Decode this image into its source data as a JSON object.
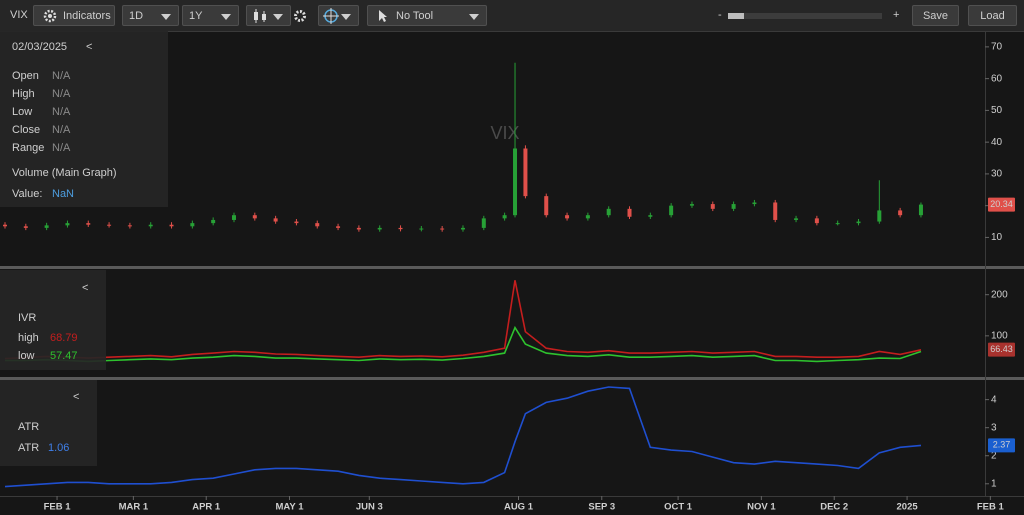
{
  "toolbar": {
    "symbol": "VIX",
    "indicators": "Indicators",
    "interval": "1D",
    "range": "1Y",
    "tool": "No Tool",
    "zoom_out": "-",
    "zoom_in": "+",
    "save": "Save",
    "load": "Load"
  },
  "info_panel": {
    "date": "02/03/2025",
    "collapse": "<",
    "rows": [
      {
        "label": "Open",
        "value": "N/A"
      },
      {
        "label": "High",
        "value": "N/A"
      },
      {
        "label": "Low",
        "value": "N/A"
      },
      {
        "label": "Close",
        "value": "N/A"
      },
      {
        "label": "Range",
        "value": "N/A"
      }
    ],
    "volume": "Volume (Main Graph)",
    "value_label": "Value:",
    "value": "NaN"
  },
  "chart_data": [
    {
      "type": "candlestick",
      "title": "VIX",
      "x": [
        0,
        6,
        12,
        18,
        24,
        30,
        36,
        42,
        48,
        54,
        60,
        66,
        72,
        78,
        84,
        90,
        96,
        102,
        108,
        114,
        120,
        126,
        132,
        138,
        144,
        147,
        150,
        156,
        162,
        168,
        174,
        180,
        186,
        192,
        198,
        204,
        210,
        216,
        222,
        228,
        234,
        240,
        246,
        252,
        258,
        264
      ],
      "open": [
        14,
        13.5,
        13,
        13.8,
        14.5,
        14,
        13.8,
        13.5,
        14,
        13.5,
        14.5,
        15.5,
        17,
        16,
        15,
        14.5,
        13.5,
        13,
        12.5,
        13,
        12.6,
        12.8,
        12.5,
        13,
        16,
        17,
        38,
        23,
        17,
        16,
        17,
        19,
        16.5,
        17,
        20,
        20.5,
        19,
        20.5,
        21,
        15.5,
        16,
        14.5,
        14.5,
        15,
        18.5,
        17
      ],
      "high": [
        14.8,
        14.3,
        14.6,
        15.3,
        15.3,
        14.8,
        14.6,
        14.8,
        14.8,
        15.3,
        16.3,
        17.8,
        17.8,
        16.8,
        15.8,
        15.3,
        14.3,
        13.8,
        13.8,
        13.8,
        13.6,
        13.6,
        13.8,
        16.8,
        17.8,
        65,
        39,
        23.8,
        17.8,
        17.8,
        19.8,
        19.8,
        17.8,
        20.8,
        21.3,
        21.3,
        21.3,
        21.8,
        21.8,
        16.8,
        16.8,
        15.3,
        15.8,
        28,
        19.3,
        21
      ],
      "low": [
        12.8,
        12.3,
        12.3,
        13.1,
        13.3,
        13.1,
        12.8,
        12.8,
        12.8,
        12.8,
        13.8,
        14.8,
        15.3,
        14.3,
        13.8,
        12.8,
        12.3,
        11.8,
        11.8,
        11.9,
        11.9,
        11.8,
        11.8,
        12.3,
        15.3,
        16.3,
        22.3,
        16.3,
        15.3,
        15.3,
        16.3,
        15.8,
        15.8,
        16.3,
        19.3,
        18.3,
        18.3,
        19.8,
        14.8,
        14.8,
        13.8,
        13.8,
        13.8,
        14.3,
        16.3,
        16.3
      ],
      "close": [
        13.5,
        13,
        13.8,
        14.5,
        14,
        13.8,
        13.5,
        14,
        13.5,
        14.5,
        15.5,
        17,
        16,
        15,
        14.5,
        13.5,
        13,
        12.5,
        13,
        12.6,
        12.8,
        12.5,
        13,
        16,
        17,
        38,
        23,
        17,
        16,
        17,
        19,
        16.5,
        17,
        20,
        20.5,
        19,
        20.5,
        21,
        15.5,
        16,
        14.5,
        14.5,
        15,
        18.5,
        17,
        20.34
      ],
      "up_color": "#27a136",
      "down_color": "#e0504a",
      "xlim": [
        -1.44,
        293.7
      ],
      "ylim": [
        1,
        75
      ],
      "yticks": [
        10,
        20,
        30,
        40,
        50,
        60,
        70
      ],
      "last_value": 20.34,
      "last_color": "#e0504a"
    },
    {
      "type": "line",
      "title": "IVR",
      "collapse": "<",
      "x": [
        0,
        6,
        12,
        18,
        24,
        30,
        36,
        42,
        48,
        54,
        60,
        66,
        72,
        78,
        84,
        90,
        96,
        102,
        108,
        114,
        120,
        126,
        132,
        138,
        144,
        147,
        150,
        156,
        162,
        168,
        174,
        180,
        186,
        192,
        198,
        204,
        210,
        216,
        222,
        228,
        234,
        240,
        246,
        252,
        258,
        264
      ],
      "series": [
        {
          "name": "high",
          "color": "#c41e1e",
          "legend_value": 68.79,
          "values": [
            45,
            47,
            50,
            48,
            46,
            48,
            50,
            52,
            49,
            55,
            58,
            62,
            60,
            56,
            55,
            52,
            50,
            48,
            52,
            50,
            51,
            49,
            53,
            60,
            70,
            235,
            110,
            70,
            62,
            60,
            64,
            58,
            58,
            60,
            62,
            58,
            60,
            62,
            50,
            50,
            48,
            48,
            50,
            62,
            55,
            66
          ]
        },
        {
          "name": "low",
          "color": "#2ec22e",
          "legend_value": 57.47,
          "values": [
            40,
            40,
            42,
            40,
            38,
            40,
            42,
            44,
            42,
            46,
            48,
            52,
            50,
            46,
            46,
            44,
            42,
            40,
            44,
            42,
            43,
            41,
            45,
            50,
            58,
            120,
            80,
            58,
            52,
            50,
            54,
            48,
            48,
            50,
            52,
            48,
            50,
            52,
            40,
            40,
            38,
            40,
            42,
            46,
            45,
            62
          ]
        }
      ],
      "xlim": [
        -1.44,
        293.7
      ],
      "ylim": [
        0,
        260
      ],
      "yticks": [
        100,
        200
      ],
      "last_value": 66.43,
      "last_color": "#a8322e"
    },
    {
      "type": "line",
      "title": "ATR",
      "collapse": "<",
      "x": [
        0,
        6,
        12,
        18,
        24,
        30,
        36,
        42,
        48,
        54,
        60,
        66,
        72,
        78,
        84,
        90,
        96,
        102,
        108,
        114,
        120,
        126,
        132,
        138,
        144,
        147,
        150,
        156,
        162,
        168,
        174,
        180,
        186,
        192,
        198,
        204,
        210,
        216,
        222,
        228,
        234,
        240,
        246,
        252,
        258,
        264
      ],
      "series": [
        {
          "name": "ATR",
          "color": "#1f4fd0",
          "legend_value": 1.06,
          "values": [
            0.9,
            0.95,
            1.0,
            1.05,
            1.05,
            1.0,
            1.0,
            1.0,
            1.05,
            1.15,
            1.2,
            1.35,
            1.5,
            1.55,
            1.55,
            1.5,
            1.45,
            1.3,
            1.2,
            1.15,
            1.1,
            1.05,
            1.0,
            1.05,
            1.4,
            2.5,
            3.5,
            3.9,
            4.05,
            4.3,
            4.45,
            4.4,
            2.3,
            2.2,
            2.15,
            1.95,
            1.75,
            1.7,
            1.8,
            1.75,
            1.7,
            1.65,
            1.55,
            2.1,
            2.3,
            2.37
          ]
        }
      ],
      "xlim": [
        -1.44,
        293.7
      ],
      "ylim": [
        0.6,
        4.7
      ],
      "yticks": [
        1,
        2,
        3,
        4
      ],
      "xticks": [
        {
          "value": 15,
          "label": "FEB 1"
        },
        {
          "value": 37,
          "label": "MAR 1"
        },
        {
          "value": 58,
          "label": "APR 1"
        },
        {
          "value": 82,
          "label": "MAY 1"
        },
        {
          "value": 105,
          "label": "JUN 3"
        },
        {
          "value": 148,
          "label": "AUG 1"
        },
        {
          "value": 172,
          "label": "SEP 3"
        },
        {
          "value": 194,
          "label": "OCT 1"
        },
        {
          "value": 218,
          "label": "NOV 1"
        },
        {
          "value": 239,
          "label": "DEC 2"
        },
        {
          "value": 260,
          "label": "2025"
        },
        {
          "value": 284,
          "label": "FEB 1"
        }
      ],
      "last_value": 2.37,
      "last_color": "#1a5fd0"
    }
  ]
}
